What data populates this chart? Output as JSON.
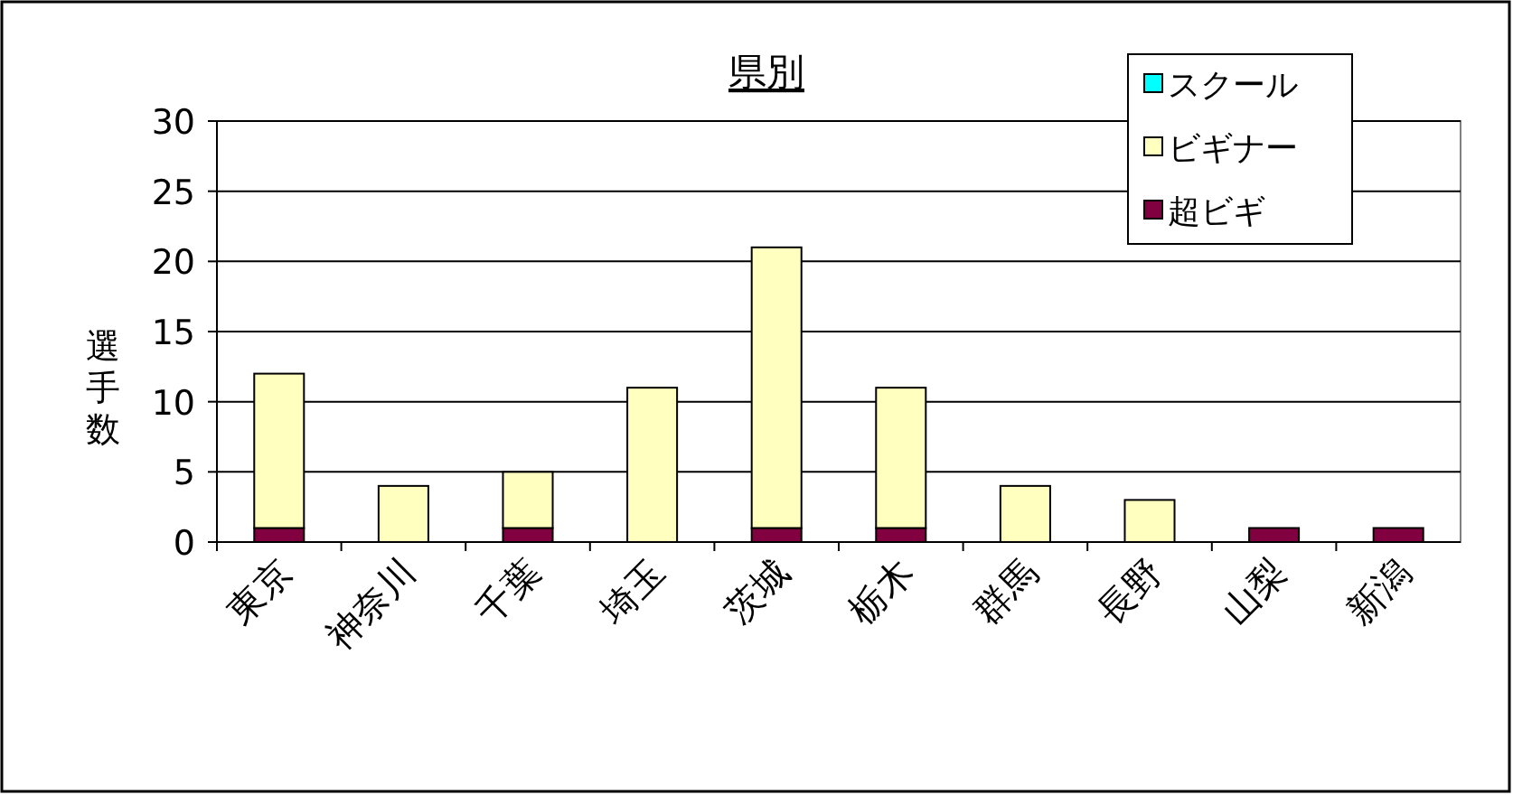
{
  "chart_data": {
    "type": "bar",
    "title": "県別",
    "ylabel": "選手数",
    "stacked": true,
    "categories": [
      "東京",
      "神奈川",
      "千葉",
      "埼玉",
      "茨城",
      "栃木",
      "群馬",
      "長野",
      "山梨",
      "新潟"
    ],
    "series": [
      {
        "name": "超ビギ",
        "color": "#800040",
        "values": [
          1,
          0,
          1,
          0,
          1,
          1,
          0,
          0,
          1,
          1
        ]
      },
      {
        "name": "ビギナー",
        "color": "#ffffc0",
        "values": [
          11,
          4,
          4,
          11,
          20,
          10,
          4,
          3,
          0,
          0
        ]
      },
      {
        "name": "スクール",
        "color": "#00ffff",
        "values": [
          0,
          0,
          0,
          0,
          0,
          0,
          0,
          0,
          0,
          0
        ]
      }
    ],
    "ylim": [
      0,
      30
    ],
    "yticks": [
      0,
      5,
      10,
      15,
      20,
      25,
      30
    ],
    "grid": "y",
    "legend": "top right"
  }
}
